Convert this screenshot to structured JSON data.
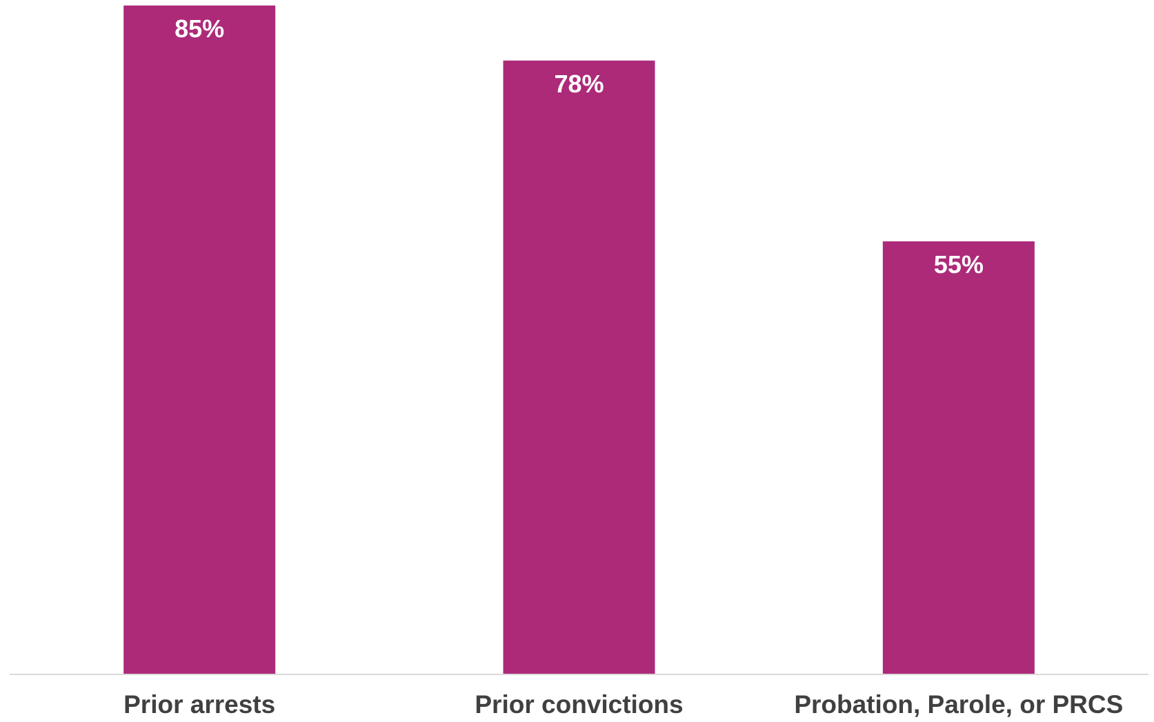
{
  "chart_data": {
    "type": "bar",
    "categories": [
      "Prior arrests",
      "Prior convictions",
      "Probation, Parole, or PRCS"
    ],
    "values": [
      85,
      78,
      55
    ],
    "data_labels": [
      "85%",
      "78%",
      "55%"
    ],
    "title": "",
    "xlabel": "",
    "ylabel": "",
    "ylim": [
      0,
      85
    ],
    "grid": false,
    "legend": "none",
    "colors": {
      "bar": "#AD2A79",
      "data_label": "#FFFFFF",
      "category_label": "#404040",
      "axis_line": "#D9D9D9"
    }
  }
}
